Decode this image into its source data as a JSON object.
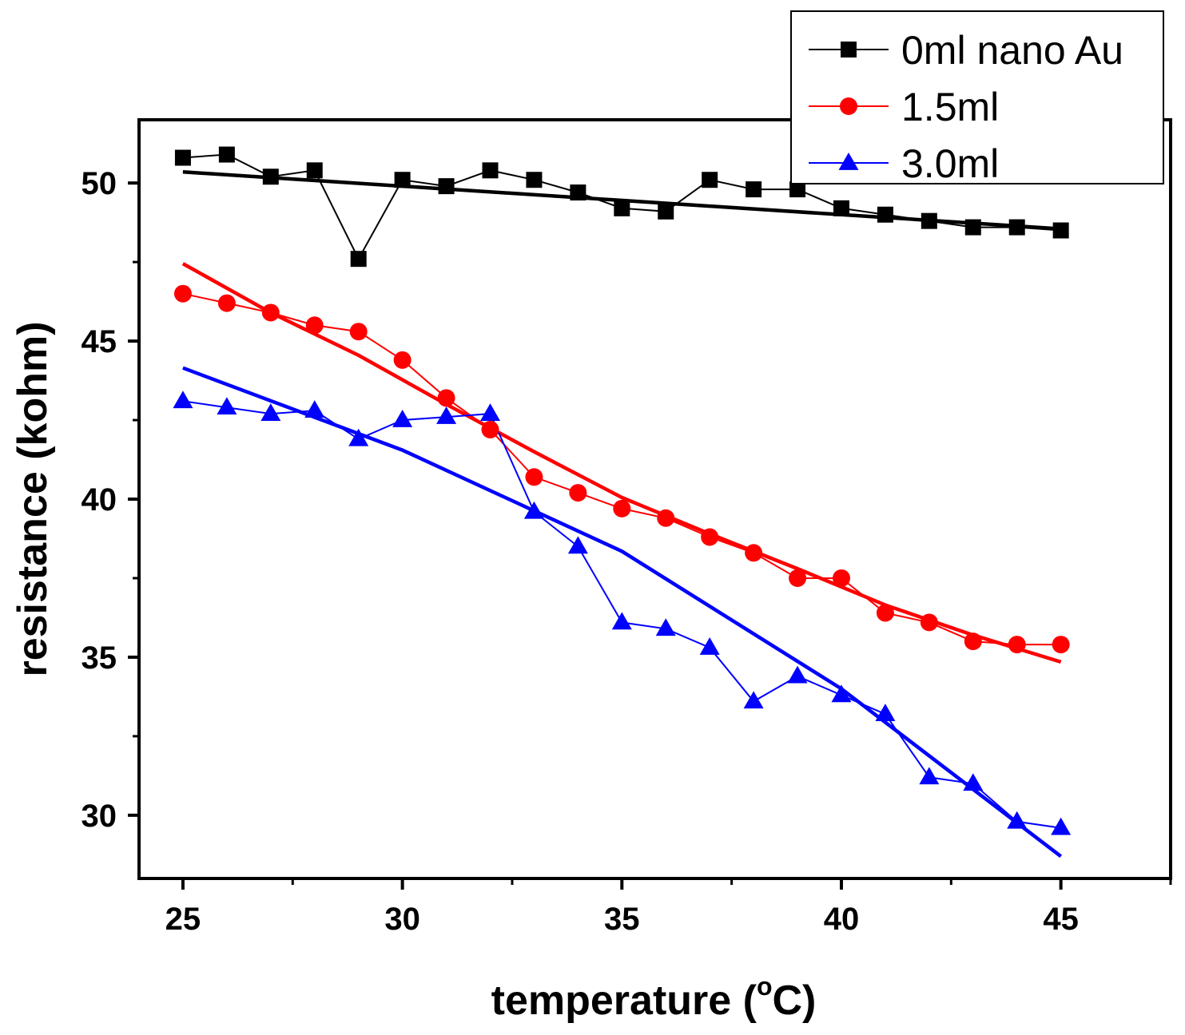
{
  "chart_data": {
    "type": "line",
    "title": "",
    "xlabel": {
      "prefix": "temperature (",
      "sup": "o",
      "suffix": "C)"
    },
    "ylabel": "resistance (kohm)",
    "xlim": [
      24.0,
      47.5
    ],
    "ylim": [
      28.0,
      52.0
    ],
    "xticks": [
      25,
      30,
      35,
      40,
      45
    ],
    "yticks": [
      30,
      35,
      40,
      45,
      50
    ],
    "grid": false,
    "legend_position": "top-right",
    "x": [
      25,
      26,
      27,
      28,
      29,
      30,
      31,
      32,
      33,
      34,
      35,
      36,
      37,
      38,
      39,
      40,
      41,
      42,
      43,
      44,
      45
    ],
    "series": [
      {
        "name": "0ml nano Au",
        "color": "#000000",
        "marker": "square",
        "values": [
          50.8,
          50.9,
          50.2,
          50.4,
          47.6,
          50.1,
          49.9,
          50.4,
          50.1,
          49.7,
          49.2,
          49.1,
          50.1,
          49.8,
          49.8,
          49.2,
          49.0,
          48.8,
          48.6,
          48.6,
          48.5
        ],
        "fit": {
          "x": [
            25,
            45
          ],
          "y": [
            50.35,
            48.55
          ]
        }
      },
      {
        "name": "1.5ml",
        "color": "#ff0000",
        "marker": "circle",
        "values": [
          46.5,
          46.2,
          45.9,
          45.5,
          45.3,
          44.4,
          43.2,
          42.2,
          40.7,
          40.2,
          39.7,
          39.4,
          38.8,
          38.3,
          37.5,
          37.5,
          36.4,
          36.1,
          35.5,
          35.4,
          35.4
        ],
        "fit": {
          "x": [
            25,
            27,
            29,
            31,
            33,
            35,
            37,
            39,
            41,
            43,
            45
          ],
          "y": [
            47.45,
            45.9,
            44.55,
            43.0,
            41.5,
            40.05,
            38.9,
            37.8,
            36.65,
            35.7,
            34.85
          ]
        }
      },
      {
        "name": "3.0ml",
        "color": "#0000ff",
        "marker": "triangle",
        "values": [
          43.1,
          42.9,
          42.7,
          42.8,
          41.9,
          42.5,
          42.6,
          42.7,
          39.6,
          38.5,
          36.1,
          35.9,
          35.3,
          33.6,
          34.4,
          33.8,
          33.2,
          31.2,
          31.0,
          29.8,
          29.6
        ],
        "fit": {
          "x": [
            25,
            30,
            35,
            40,
            45
          ],
          "y": [
            44.15,
            41.55,
            38.35,
            34.0,
            28.7
          ]
        }
      }
    ]
  }
}
